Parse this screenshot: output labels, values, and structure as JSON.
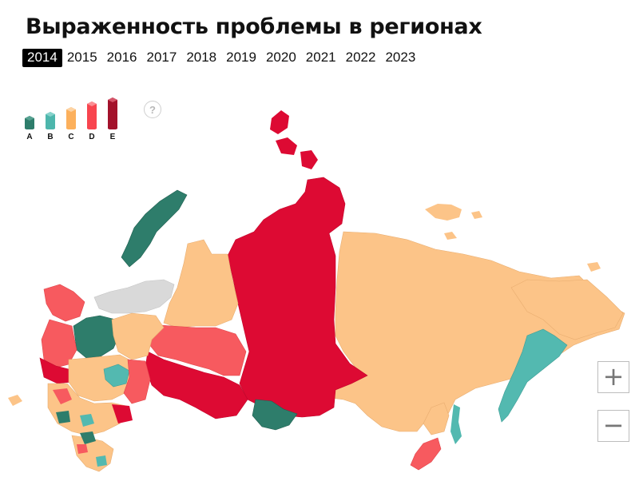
{
  "title": "Выраженность проблемы в регионах",
  "years": [
    "2014",
    "2015",
    "2016",
    "2017",
    "2018",
    "2019",
    "2020",
    "2021",
    "2022",
    "2023"
  ],
  "selected_year": "2014",
  "legend": [
    {
      "label": "A",
      "color": "#2e7d6b"
    },
    {
      "label": "B",
      "color": "#4db6ac"
    },
    {
      "label": "C",
      "color": "#fcbe7c"
    },
    {
      "label": "D",
      "color": "#f8454f"
    },
    {
      "label": "E",
      "color": "#a3122b"
    }
  ],
  "help_label": "?",
  "zoom": {
    "in_label": "+",
    "out_label": "−"
  },
  "map_colors": {
    "no_data": "#d9d9d9",
    "A": "#2e7d6b",
    "B": "#53b9b0",
    "C": "#fcc488",
    "D": "#f75a5f",
    "E_map": "#dd0a33"
  }
}
